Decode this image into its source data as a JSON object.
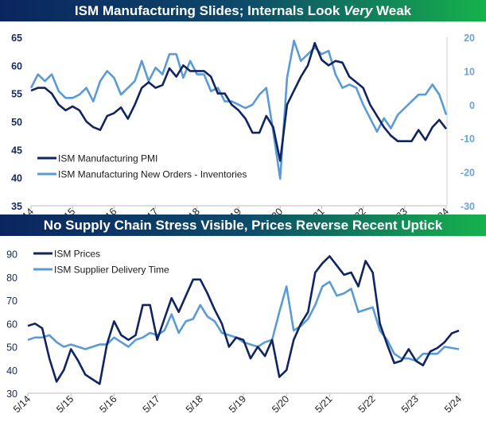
{
  "colors": {
    "dark": "#0f2461",
    "light": "#5b9bd5",
    "axis_left": "#14285e",
    "axis_right": "#6aa3d8"
  },
  "x_labels": [
    "5/14",
    "5/15",
    "5/16",
    "5/17",
    "5/18",
    "5/19",
    "5/20",
    "5/21",
    "5/22",
    "5/23",
    "5/24"
  ],
  "chart_data": [
    {
      "type": "line",
      "title_parts": [
        "ISM Manufacturing Slides; Internals Look ",
        "Very",
        " Weak"
      ],
      "x_start": "5/14",
      "x_end": "5/24",
      "x_step": "2 months",
      "left_axis": {
        "ylim": [
          35,
          65
        ],
        "ticks": [
          "35",
          "40",
          "45",
          "50",
          "55",
          "60",
          "65"
        ]
      },
      "right_axis": {
        "ylim": [
          -30,
          20
        ],
        "ticks": [
          "-30",
          "-20",
          "-10",
          "0",
          "10",
          "20"
        ]
      },
      "legend": "middle-left",
      "series": [
        {
          "name": "ISM Manufacturing PMI",
          "axis": "left",
          "color": "#0f2461",
          "values": [
            55.5,
            56,
            56,
            55,
            53,
            52,
            52.7,
            52,
            50,
            49,
            48.5,
            51,
            51.5,
            52.5,
            50.5,
            53,
            56,
            57,
            56,
            56.5,
            59.5,
            58,
            60,
            59,
            59,
            59,
            58,
            55,
            55,
            53,
            52,
            50.5,
            48,
            48,
            51,
            49,
            43,
            53,
            55.5,
            58,
            60,
            64,
            61,
            60,
            60.8,
            60.5,
            58,
            57,
            56,
            53,
            51,
            49,
            47.5,
            46.5,
            46.5,
            46.5,
            48.5,
            46.7,
            49,
            50.3,
            48.7
          ]
        },
        {
          "name": "ISM Manufacturing New Orders - Inventories",
          "axis": "right",
          "color": "#5b9bd5",
          "values": [
            5,
            9,
            7,
            9,
            4,
            2,
            2,
            3,
            5,
            1,
            7,
            10,
            8,
            3,
            5,
            7,
            13,
            7,
            11,
            9,
            15,
            15,
            8,
            13,
            9,
            9,
            4,
            5,
            1,
            1,
            0,
            -1,
            0,
            3,
            5,
            -8,
            -22,
            8,
            19,
            13,
            15,
            17,
            15,
            16,
            9,
            5,
            6,
            5,
            0,
            -4,
            -8,
            -4,
            -7,
            -3,
            -1,
            1,
            3,
            3,
            6,
            3,
            -3
          ]
        }
      ]
    },
    {
      "type": "line",
      "title": "No Supply Chain Stress Visible, Prices Reverse Recent Uptick",
      "x_start": "5/14",
      "x_end": "5/24",
      "x_step": "2 months",
      "left_axis": {
        "ylim": [
          30,
          95
        ],
        "ticks": [
          "30",
          "40",
          "50",
          "60",
          "70",
          "80",
          "90"
        ]
      },
      "legend": "top-left",
      "series": [
        {
          "name": "ISM Prices",
          "axis": "left",
          "color": "#0f2461",
          "values": [
            59,
            60,
            58,
            45,
            35,
            40,
            49,
            44,
            38,
            36,
            34,
            51,
            61,
            55,
            53,
            55,
            68,
            68,
            53,
            62,
            71,
            65,
            72,
            79,
            79,
            73,
            66,
            60,
            50,
            54,
            53,
            45,
            50,
            46,
            53,
            37,
            40,
            53,
            60,
            65,
            82,
            86,
            89,
            85,
            81,
            82,
            76,
            87,
            82,
            60,
            51,
            43,
            44,
            49,
            44,
            42,
            48,
            49.5,
            52,
            55.8,
            57
          ]
        },
        {
          "name": "ISM Supplier Delivery Time",
          "axis": "left",
          "color": "#5b9bd5",
          "values": [
            53,
            54,
            54,
            55,
            52,
            50,
            51,
            50,
            49,
            50,
            51,
            51,
            54,
            52,
            50,
            53,
            54,
            56,
            55,
            57,
            64,
            56,
            61,
            62,
            68,
            63,
            61,
            56,
            55,
            54,
            52,
            51,
            50,
            52,
            53,
            65,
            76,
            57,
            59,
            62,
            68,
            76,
            78,
            72,
            73,
            75,
            65,
            66,
            67,
            57,
            53,
            47,
            45,
            45,
            44,
            47,
            47,
            47,
            50,
            49.5,
            49
          ]
        }
      ]
    }
  ]
}
